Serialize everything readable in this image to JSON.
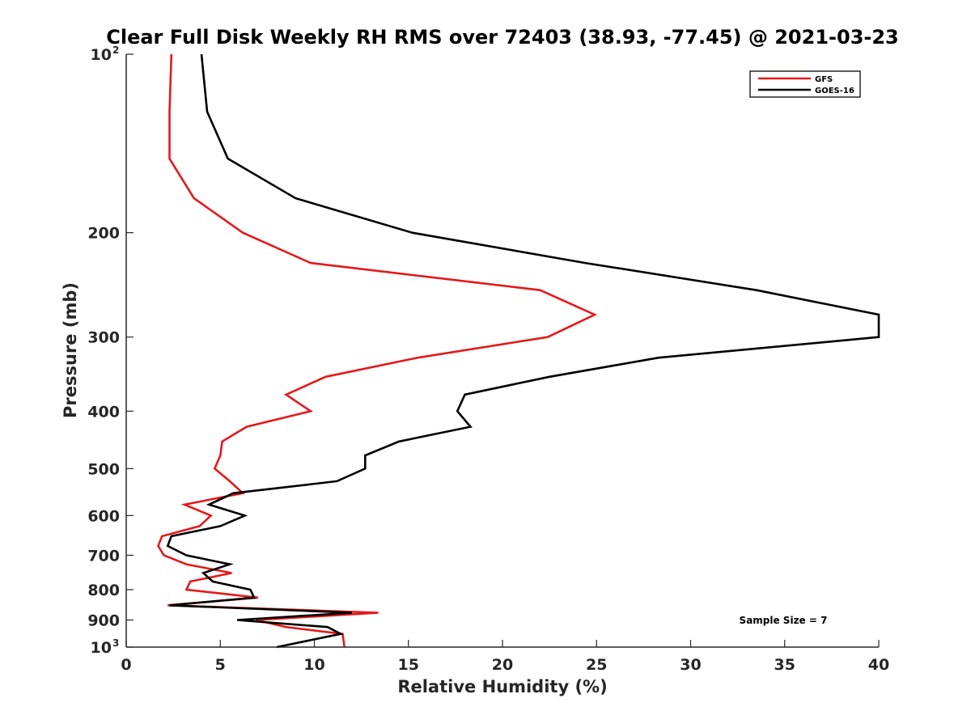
{
  "chart_data": {
    "type": "line",
    "title": "Clear Full Disk Weekly RH RMS over 72403 (38.93, -77.45) @ 2021-03-23",
    "xlabel": "Relative Humidity (%)",
    "ylabel": "Pressure (mb)",
    "xlim": [
      0,
      40
    ],
    "ylim": [
      100,
      1000
    ],
    "y_scale": "log",
    "y_reversed": true,
    "grid": false,
    "legend_position": "top-right",
    "annotation": "Sample Size = 7",
    "x_ticks": [
      {
        "value": 0,
        "label": "0"
      },
      {
        "value": 5,
        "label": "5"
      },
      {
        "value": 10,
        "label": "10"
      },
      {
        "value": 15,
        "label": "15"
      },
      {
        "value": 20,
        "label": "20"
      },
      {
        "value": 25,
        "label": "25"
      },
      {
        "value": 30,
        "label": "30"
      },
      {
        "value": 35,
        "label": "35"
      },
      {
        "value": 40,
        "label": "40"
      }
    ],
    "y_ticks": [
      {
        "value": 100,
        "label": "10",
        "sup": "2"
      },
      {
        "value": 200,
        "label": "200",
        "sup": ""
      },
      {
        "value": 300,
        "label": "300",
        "sup": ""
      },
      {
        "value": 400,
        "label": "400",
        "sup": ""
      },
      {
        "value": 500,
        "label": "500",
        "sup": ""
      },
      {
        "value": 600,
        "label": "600",
        "sup": ""
      },
      {
        "value": 700,
        "label": "700",
        "sup": ""
      },
      {
        "value": 800,
        "label": "800",
        "sup": ""
      },
      {
        "value": 900,
        "label": "900",
        "sup": ""
      },
      {
        "value": 1000,
        "label": "10",
        "sup": "3"
      }
    ],
    "series": [
      {
        "name": "GFS",
        "color": "#e31a1c",
        "points": [
          {
            "x": 2.4,
            "y": 100
          },
          {
            "x": 2.3,
            "y": 125
          },
          {
            "x": 2.3,
            "y": 150
          },
          {
            "x": 3.6,
            "y": 175
          },
          {
            "x": 6.2,
            "y": 200
          },
          {
            "x": 9.8,
            "y": 225
          },
          {
            "x": 22.0,
            "y": 250
          },
          {
            "x": 24.9,
            "y": 275
          },
          {
            "x": 22.4,
            "y": 300
          },
          {
            "x": 15.5,
            "y": 325
          },
          {
            "x": 10.6,
            "y": 350
          },
          {
            "x": 8.5,
            "y": 375
          },
          {
            "x": 9.8,
            "y": 400
          },
          {
            "x": 6.4,
            "y": 425
          },
          {
            "x": 5.1,
            "y": 450
          },
          {
            "x": 5.0,
            "y": 475
          },
          {
            "x": 4.7,
            "y": 500
          },
          {
            "x": 5.5,
            "y": 525
          },
          {
            "x": 6.2,
            "y": 550
          },
          {
            "x": 3.1,
            "y": 575
          },
          {
            "x": 4.5,
            "y": 600
          },
          {
            "x": 3.9,
            "y": 625
          },
          {
            "x": 1.9,
            "y": 650
          },
          {
            "x": 1.7,
            "y": 675
          },
          {
            "x": 2.0,
            "y": 700
          },
          {
            "x": 3.2,
            "y": 725
          },
          {
            "x": 5.6,
            "y": 750
          },
          {
            "x": 3.4,
            "y": 775
          },
          {
            "x": 3.2,
            "y": 800
          },
          {
            "x": 7.0,
            "y": 825
          },
          {
            "x": 2.2,
            "y": 850
          },
          {
            "x": 13.4,
            "y": 875
          },
          {
            "x": 6.9,
            "y": 900
          },
          {
            "x": 8.5,
            "y": 925
          },
          {
            "x": 11.5,
            "y": 950
          },
          {
            "x": 11.6,
            "y": 1000
          }
        ]
      },
      {
        "name": "GOES-16",
        "color": "#000000",
        "points": [
          {
            "x": 4.0,
            "y": 100
          },
          {
            "x": 4.3,
            "y": 125
          },
          {
            "x": 5.4,
            "y": 150
          },
          {
            "x": 9.0,
            "y": 175
          },
          {
            "x": 15.2,
            "y": 200
          },
          {
            "x": 24.4,
            "y": 225
          },
          {
            "x": 33.5,
            "y": 250
          },
          {
            "x": 40.0,
            "y": 275
          },
          {
            "x": 40.0,
            "y": 300
          },
          {
            "x": 28.3,
            "y": 325
          },
          {
            "x": 22.5,
            "y": 350
          },
          {
            "x": 18.0,
            "y": 375
          },
          {
            "x": 17.6,
            "y": 400
          },
          {
            "x": 18.3,
            "y": 425
          },
          {
            "x": 14.5,
            "y": 450
          },
          {
            "x": 12.7,
            "y": 475
          },
          {
            "x": 12.7,
            "y": 500
          },
          {
            "x": 11.2,
            "y": 525
          },
          {
            "x": 5.7,
            "y": 550
          },
          {
            "x": 4.4,
            "y": 575
          },
          {
            "x": 6.3,
            "y": 600
          },
          {
            "x": 5.0,
            "y": 625
          },
          {
            "x": 2.4,
            "y": 650
          },
          {
            "x": 2.2,
            "y": 675
          },
          {
            "x": 3.2,
            "y": 700
          },
          {
            "x": 5.5,
            "y": 725
          },
          {
            "x": 4.1,
            "y": 750
          },
          {
            "x": 4.6,
            "y": 775
          },
          {
            "x": 6.6,
            "y": 800
          },
          {
            "x": 6.8,
            "y": 825
          },
          {
            "x": 2.3,
            "y": 850
          },
          {
            "x": 12.0,
            "y": 875
          },
          {
            "x": 5.9,
            "y": 900
          },
          {
            "x": 10.7,
            "y": 925
          },
          {
            "x": 11.4,
            "y": 950
          },
          {
            "x": 8.0,
            "y": 1000
          }
        ]
      }
    ]
  }
}
